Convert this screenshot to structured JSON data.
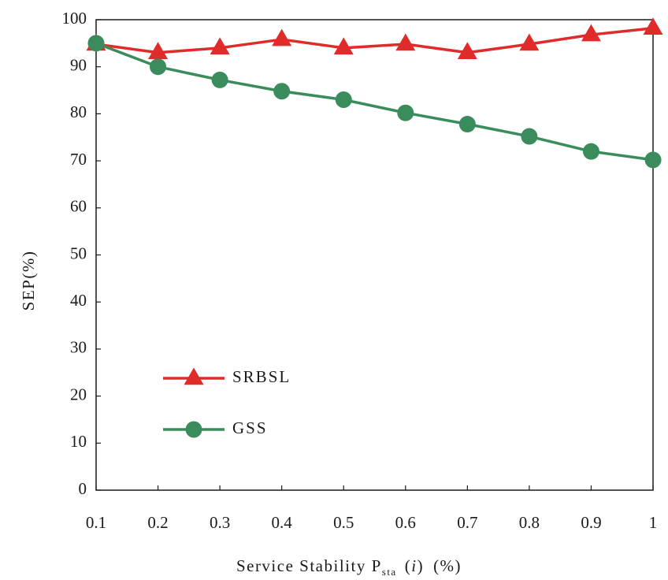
{
  "chart_data": {
    "type": "line",
    "xlabel": {
      "main": "Service Stability P",
      "sub": "sta",
      "paren_open": "(",
      "var": "i",
      "paren_close": ")",
      "unit": "(%)"
    },
    "ylabel": "SEP(%)",
    "x_ticks": [
      "0.1",
      "0.2",
      "0.3",
      "0.4",
      "0.5",
      "0.6",
      "0.7",
      "0.8",
      "0.9",
      "1"
    ],
    "y_ticks": [
      "0",
      "10",
      "20",
      "30",
      "40",
      "50",
      "60",
      "70",
      "80",
      "90",
      "100"
    ],
    "xlim": [
      0.1,
      1.0
    ],
    "ylim": [
      0,
      100
    ],
    "x": [
      0.1,
      0.2,
      0.3,
      0.4,
      0.5,
      0.6,
      0.7,
      0.8,
      0.9,
      1.0
    ],
    "series": [
      {
        "name": "SRBSL",
        "marker": "triangle",
        "color": "#e02b2b",
        "values": [
          94.8,
          93.0,
          94.0,
          95.8,
          94.0,
          94.8,
          93.0,
          94.8,
          96.8,
          98.2
        ]
      },
      {
        "name": "GSS",
        "marker": "circle",
        "color": "#3a8c5c",
        "values": [
          95.0,
          90.0,
          87.2,
          84.8,
          83.0,
          80.2,
          77.8,
          75.2,
          72.0,
          70.2
        ]
      }
    ],
    "grid": false,
    "legend_position": "lower-left"
  }
}
